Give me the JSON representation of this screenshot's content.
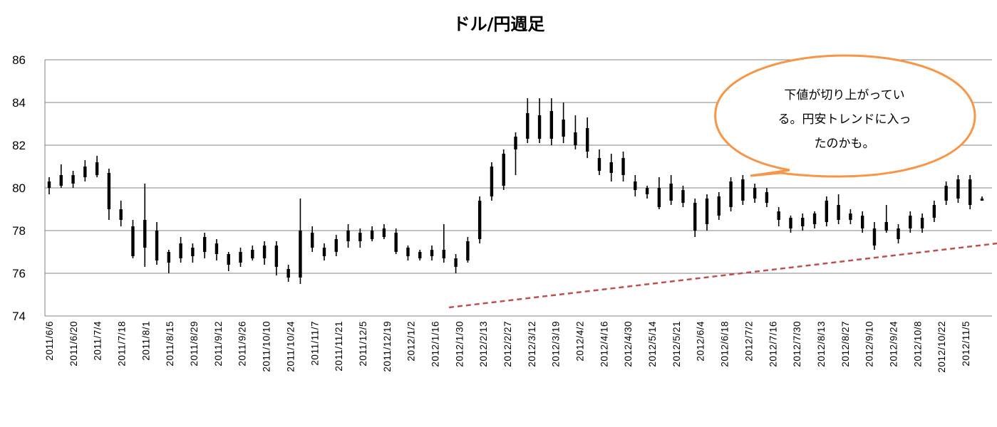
{
  "chart_data": {
    "type": "candlestick",
    "title": "ドル/円週足",
    "ylim": [
      74,
      86
    ],
    "yticks": [
      74,
      76,
      78,
      80,
      82,
      84,
      86
    ],
    "grid": true,
    "xtick_labels": [
      "2011/6/6",
      "2011/6/20",
      "2011/7/4",
      "2011/7/18",
      "2011/8/1",
      "2011/8/15",
      "2011/8/29",
      "2011/9/12",
      "2011/9/26",
      "2011/10/10",
      "2011/10/24",
      "2011/11/7",
      "2011/11/21",
      "2011/12/5",
      "2011/12/19",
      "2012/1/2",
      "2012/1/16",
      "2012/1/30",
      "2012/2/13",
      "2012/2/27",
      "2012/3/12",
      "2012/3/19",
      "2012/4/2",
      "2012/4/16",
      "2012/4/30",
      "2012/5/14",
      "2012/5/21",
      "2012/6/4",
      "2012/6/18",
      "2012/7/2",
      "2012/7/16",
      "2012/7/30",
      "2012/8/13",
      "2012/8/27",
      "2012/9/10",
      "2012/9/24",
      "2012/10/8",
      "2012/10/22",
      "2012/11/5"
    ],
    "weeks": [
      {
        "high": 80.5,
        "low": 79.7,
        "body": [
          80.0,
          80.3
        ]
      },
      {
        "high": 81.1,
        "low": 80.0,
        "body": [
          80.1,
          80.6
        ]
      },
      {
        "high": 80.8,
        "low": 80.0,
        "body": [
          80.2,
          80.6
        ]
      },
      {
        "high": 81.3,
        "low": 80.3,
        "body": [
          80.5,
          81.0
        ]
      },
      {
        "high": 81.5,
        "low": 80.5,
        "body": [
          80.6,
          81.2
        ]
      },
      {
        "high": 80.9,
        "low": 78.5,
        "body": [
          79.0,
          80.7
        ]
      },
      {
        "high": 79.4,
        "low": 78.2,
        "body": [
          78.5,
          79.0
        ]
      },
      {
        "high": 78.5,
        "low": 76.7,
        "body": [
          76.8,
          78.2
        ]
      },
      {
        "high": 80.2,
        "low": 76.3,
        "body": [
          77.2,
          78.5
        ]
      },
      {
        "high": 78.4,
        "low": 76.4,
        "body": [
          76.6,
          78.0
        ]
      },
      {
        "high": 77.1,
        "low": 76.0,
        "body": [
          76.5,
          77.0
        ]
      },
      {
        "high": 77.7,
        "low": 76.5,
        "body": [
          76.7,
          77.4
        ]
      },
      {
        "high": 77.4,
        "low": 76.5,
        "body": [
          76.8,
          77.2
        ]
      },
      {
        "high": 77.9,
        "low": 76.7,
        "body": [
          77.0,
          77.7
        ]
      },
      {
        "high": 77.6,
        "low": 76.6,
        "body": [
          76.9,
          77.4
        ]
      },
      {
        "high": 77.0,
        "low": 76.1,
        "body": [
          76.4,
          76.9
        ]
      },
      {
        "high": 77.2,
        "low": 76.3,
        "body": [
          76.5,
          77.0
        ]
      },
      {
        "high": 77.3,
        "low": 76.6,
        "body": [
          76.7,
          77.1
        ]
      },
      {
        "high": 77.5,
        "low": 76.4,
        "body": [
          76.7,
          77.3
        ]
      },
      {
        "high": 77.5,
        "low": 75.9,
        "body": [
          76.3,
          77.3
        ]
      },
      {
        "high": 76.4,
        "low": 75.6,
        "body": [
          75.8,
          76.2
        ]
      },
      {
        "high": 79.5,
        "low": 75.5,
        "body": [
          75.8,
          78.0
        ]
      },
      {
        "high": 78.2,
        "low": 77.0,
        "body": [
          77.2,
          77.9
        ]
      },
      {
        "high": 77.4,
        "low": 76.6,
        "body": [
          76.8,
          77.2
        ]
      },
      {
        "high": 77.8,
        "low": 76.8,
        "body": [
          77.0,
          77.6
        ]
      },
      {
        "high": 78.3,
        "low": 77.2,
        "body": [
          77.5,
          78.0
        ]
      },
      {
        "high": 78.1,
        "low": 77.2,
        "body": [
          77.5,
          77.9
        ]
      },
      {
        "high": 78.2,
        "low": 77.5,
        "body": [
          77.6,
          78.0
        ]
      },
      {
        "high": 78.3,
        "low": 77.6,
        "body": [
          77.7,
          78.1
        ]
      },
      {
        "high": 78.1,
        "low": 76.9,
        "body": [
          77.0,
          77.9
        ]
      },
      {
        "high": 77.3,
        "low": 76.6,
        "body": [
          76.8,
          77.2
        ]
      },
      {
        "high": 77.1,
        "low": 76.6,
        "body": [
          76.7,
          77.0
        ]
      },
      {
        "high": 77.3,
        "low": 76.6,
        "body": [
          76.8,
          77.1
        ]
      },
      {
        "high": 78.3,
        "low": 76.5,
        "body": [
          76.7,
          77.1
        ]
      },
      {
        "high": 76.9,
        "low": 76.0,
        "body": [
          76.3,
          76.7
        ]
      },
      {
        "high": 77.7,
        "low": 76.5,
        "body": [
          76.6,
          77.5
        ]
      },
      {
        "high": 79.6,
        "low": 77.4,
        "body": [
          77.6,
          79.4
        ]
      },
      {
        "high": 81.2,
        "low": 79.4,
        "body": [
          79.6,
          81.0
        ]
      },
      {
        "high": 81.8,
        "low": 79.9,
        "body": [
          80.1,
          81.6
        ]
      },
      {
        "high": 82.6,
        "low": 80.6,
        "body": [
          81.8,
          82.4
        ]
      },
      {
        "high": 84.2,
        "low": 82.1,
        "body": [
          82.3,
          83.5
        ]
      },
      {
        "high": 84.2,
        "low": 82.1,
        "body": [
          82.3,
          83.4
        ]
      },
      {
        "high": 84.2,
        "low": 82.0,
        "body": [
          82.3,
          83.6
        ]
      },
      {
        "high": 84.0,
        "low": 82.1,
        "body": [
          82.4,
          83.2
        ]
      },
      {
        "high": 83.4,
        "low": 81.8,
        "body": [
          82.0,
          82.6
        ]
      },
      {
        "high": 83.3,
        "low": 81.4,
        "body": [
          81.7,
          82.8
        ]
      },
      {
        "high": 81.8,
        "low": 80.6,
        "body": [
          80.8,
          81.4
        ]
      },
      {
        "high": 81.6,
        "low": 80.3,
        "body": [
          80.7,
          81.2
        ]
      },
      {
        "high": 81.7,
        "low": 80.3,
        "body": [
          80.6,
          81.4
        ]
      },
      {
        "high": 80.6,
        "low": 79.6,
        "body": [
          79.9,
          80.3
        ]
      },
      {
        "high": 80.1,
        "low": 79.5,
        "body": [
          79.7,
          80.0
        ]
      },
      {
        "high": 80.5,
        "low": 79.0,
        "body": [
          79.1,
          80.0
        ]
      },
      {
        "high": 80.6,
        "low": 79.2,
        "body": [
          79.4,
          80.2
        ]
      },
      {
        "high": 80.1,
        "low": 79.1,
        "body": [
          79.3,
          79.9
        ]
      },
      {
        "high": 79.5,
        "low": 77.7,
        "body": [
          78.0,
          79.3
        ]
      },
      {
        "high": 79.7,
        "low": 78.0,
        "body": [
          78.3,
          79.5
        ]
      },
      {
        "high": 79.8,
        "low": 78.5,
        "body": [
          78.7,
          79.6
        ]
      },
      {
        "high": 80.5,
        "low": 78.9,
        "body": [
          79.1,
          80.3
        ]
      },
      {
        "high": 80.6,
        "low": 79.2,
        "body": [
          79.4,
          80.4
        ]
      },
      {
        "high": 80.2,
        "low": 79.3,
        "body": [
          79.5,
          80.0
        ]
      },
      {
        "high": 80.0,
        "low": 79.1,
        "body": [
          79.3,
          79.8
        ]
      },
      {
        "high": 79.1,
        "low": 78.2,
        "body": [
          78.5,
          78.9
        ]
      },
      {
        "high": 78.7,
        "low": 77.9,
        "body": [
          78.1,
          78.6
        ]
      },
      {
        "high": 78.8,
        "low": 78.0,
        "body": [
          78.2,
          78.6
        ]
      },
      {
        "high": 78.9,
        "low": 78.1,
        "body": [
          78.3,
          78.8
        ]
      },
      {
        "high": 79.6,
        "low": 78.2,
        "body": [
          78.4,
          79.4
        ]
      },
      {
        "high": 79.7,
        "low": 78.3,
        "body": [
          78.5,
          79.2
        ]
      },
      {
        "high": 79.0,
        "low": 78.3,
        "body": [
          78.5,
          78.8
        ]
      },
      {
        "high": 78.9,
        "low": 77.9,
        "body": [
          78.1,
          78.7
        ]
      },
      {
        "high": 78.4,
        "low": 77.1,
        "body": [
          77.3,
          78.1
        ]
      },
      {
        "high": 79.2,
        "low": 77.9,
        "body": [
          78.0,
          78.4
        ]
      },
      {
        "high": 78.3,
        "low": 77.4,
        "body": [
          77.6,
          78.1
        ]
      },
      {
        "high": 78.9,
        "low": 77.9,
        "body": [
          78.1,
          78.7
        ]
      },
      {
        "high": 78.8,
        "low": 77.9,
        "body": [
          78.1,
          78.6
        ]
      },
      {
        "high": 79.4,
        "low": 78.4,
        "body": [
          78.6,
          79.2
        ]
      },
      {
        "high": 80.3,
        "low": 79.2,
        "body": [
          79.4,
          80.1
        ]
      },
      {
        "high": 80.6,
        "low": 79.3,
        "body": [
          79.5,
          80.4
        ]
      },
      {
        "high": 80.6,
        "low": 79.0,
        "body": [
          79.2,
          80.4
        ]
      },
      {
        "high": 79.6,
        "low": 79.4,
        "body": [
          79.4,
          79.5
        ]
      }
    ],
    "trendline": {
      "style": "dashed",
      "color": "#c0504d",
      "from": [
        "2012/1/23",
        74.4
      ],
      "to": [
        "end",
        77.4
      ]
    },
    "annotation": {
      "lines": [
        "下値が切り上がってい",
        "る。円安トレンドに入っ",
        "たのかも。"
      ],
      "shape": "speech-bubble",
      "border_color": "#f79646",
      "fill_color": "#ffffff"
    }
  }
}
